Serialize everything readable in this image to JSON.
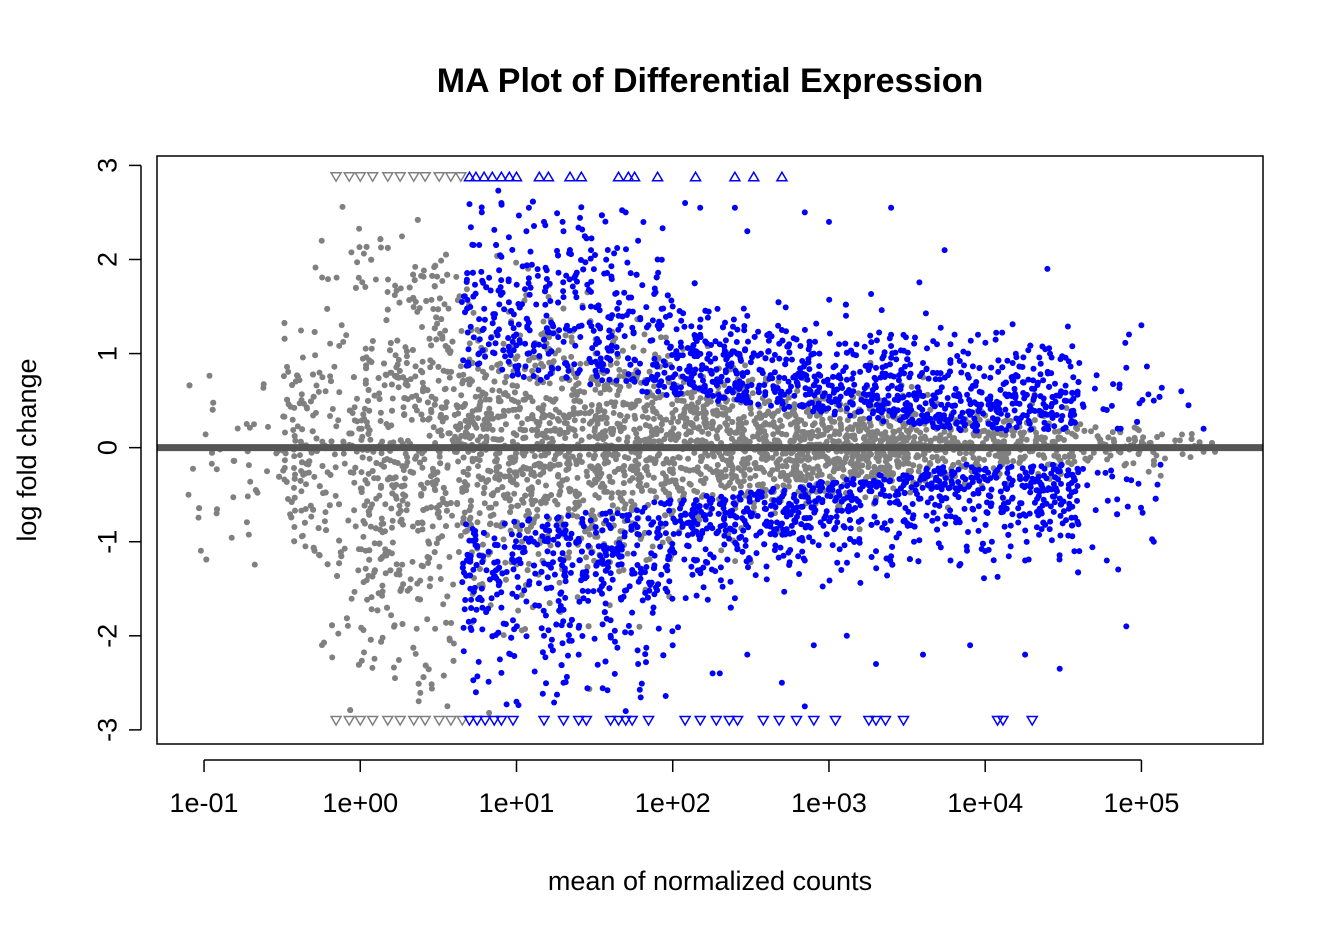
{
  "chart_data": {
    "type": "scatter",
    "title": "MA Plot of Differential Expression",
    "xlabel": "mean of normalized counts",
    "ylabel": "log fold change",
    "x_scale": "log10",
    "xlim": [
      0.05,
      600000
    ],
    "ylim": [
      -3.15,
      3.1
    ],
    "x_ticks": [
      {
        "value": 0.1,
        "label": "1e-01"
      },
      {
        "value": 1,
        "label": "1e+00"
      },
      {
        "value": 10,
        "label": "1e+01"
      },
      {
        "value": 100,
        "label": "1e+02"
      },
      {
        "value": 1000,
        "label": "1e+03"
      },
      {
        "value": 10000,
        "label": "1e+04"
      },
      {
        "value": 100000,
        "label": "1e+05"
      }
    ],
    "y_ticks": [
      {
        "value": 3,
        "label": "3"
      },
      {
        "value": 2,
        "label": "2"
      },
      {
        "value": 1,
        "label": "1"
      },
      {
        "value": 0,
        "label": "0"
      },
      {
        "value": -1,
        "label": "-1"
      },
      {
        "value": -2,
        "label": "-2"
      },
      {
        "value": -3,
        "label": "-3"
      }
    ],
    "reference_line": {
      "y": 0,
      "color": "#555555"
    },
    "colors": {
      "not_significant": "#808080",
      "significant": "#0000ff"
    },
    "series": [
      {
        "color": "#0000ff",
        "points": [
          [
            6.0,
            2.5
          ],
          [
            8.0,
            2.6
          ],
          [
            12.0,
            2.55
          ],
          [
            15.0,
            2.4
          ],
          [
            20.0,
            2.3
          ],
          [
            30.0,
            2.1
          ],
          [
            50.0,
            2.5
          ],
          [
            60.0,
            2.2
          ],
          [
            80.0,
            2.0
          ],
          [
            120.0,
            2.6
          ],
          [
            150.0,
            2.55
          ],
          [
            250.0,
            2.55
          ],
          [
            300.0,
            2.3
          ],
          [
            700.0,
            2.5
          ],
          [
            1000.0,
            2.4
          ],
          [
            2500.0,
            2.55
          ],
          [
            5500.0,
            2.1
          ],
          [
            25000.0,
            1.9
          ],
          [
            12.0,
            1.8
          ],
          [
            20.0,
            1.6
          ],
          [
            30.0,
            1.5
          ],
          [
            45.0,
            1.4
          ],
          [
            70.0,
            1.3
          ],
          [
            100.0,
            1.5
          ],
          [
            150.0,
            1.2
          ],
          [
            200.0,
            1.1
          ],
          [
            300.0,
            1.4
          ],
          [
            500.0,
            1.25
          ],
          [
            800.0,
            1.0
          ],
          [
            1500.0,
            1.1
          ],
          [
            2500.0,
            1.2
          ],
          [
            4000.0,
            0.9
          ],
          [
            6000.0,
            1.1
          ],
          [
            9000.0,
            1.2
          ],
          [
            15000.0,
            0.9
          ],
          [
            26000.0,
            1.0
          ],
          [
            40000.0,
            0.9
          ],
          [
            80000.0,
            0.85
          ],
          [
            100000.0,
            1.3
          ],
          [
            180000.0,
            0.6
          ],
          [
            35.0,
            0.9
          ],
          [
            60.0,
            0.8
          ],
          [
            100.0,
            0.75
          ],
          [
            180.0,
            0.7
          ],
          [
            300.0,
            0.65
          ],
          [
            600.0,
            0.55
          ],
          [
            1000.0,
            0.5
          ],
          [
            1800.0,
            0.45
          ],
          [
            3000.0,
            0.4
          ],
          [
            5000.0,
            0.35
          ],
          [
            8000.0,
            0.35
          ],
          [
            12000.0,
            0.3
          ],
          [
            20000.0,
            0.4
          ],
          [
            30000.0,
            0.55
          ],
          [
            60000.0,
            0.4
          ],
          [
            120000.0,
            0.5
          ],
          [
            200000.0,
            0.45
          ],
          [
            250000.0,
            0.2
          ],
          [
            40.0,
            -0.85
          ],
          [
            70.0,
            -0.75
          ],
          [
            120.0,
            -0.7
          ],
          [
            200.0,
            -0.6
          ],
          [
            350.0,
            -0.55
          ],
          [
            600.0,
            -0.5
          ],
          [
            1000.0,
            -0.45
          ],
          [
            1800.0,
            -0.4
          ],
          [
            3000.0,
            -0.4
          ],
          [
            5000.0,
            -0.35
          ],
          [
            9000.0,
            -0.3
          ],
          [
            15000.0,
            -0.35
          ],
          [
            25000.0,
            -0.45
          ],
          [
            45000.0,
            -0.4
          ],
          [
            70000.0,
            -0.55
          ],
          [
            12.0,
            -1.0
          ],
          [
            20.0,
            -1.2
          ],
          [
            35.0,
            -1.4
          ],
          [
            55.0,
            -1.3
          ],
          [
            90.0,
            -1.5
          ],
          [
            150.0,
            -1.3
          ],
          [
            250.0,
            -1.6
          ],
          [
            400.0,
            -1.4
          ],
          [
            700.0,
            -1.2
          ],
          [
            1200.0,
            -1.3
          ],
          [
            2000.0,
            -1.1
          ],
          [
            3500.0,
            -1.0
          ],
          [
            6000.0,
            -1.2
          ],
          [
            10000.0,
            -1.1
          ],
          [
            18000.0,
            -1.2
          ],
          [
            40000.0,
            -1.1
          ],
          [
            60000.0,
            -1.2
          ],
          [
            120000.0,
            -1.0
          ],
          [
            8.0,
            -1.7
          ],
          [
            15.0,
            -2.0
          ],
          [
            25.0,
            -2.2
          ],
          [
            40.0,
            -2.0
          ],
          [
            60.0,
            -2.3
          ],
          [
            100.0,
            -2.1
          ],
          [
            180.0,
            -2.4
          ],
          [
            300.0,
            -2.2
          ],
          [
            500.0,
            -2.5
          ],
          [
            800.0,
            -2.1
          ],
          [
            1300.0,
            -2.0
          ],
          [
            2000.0,
            -2.3
          ],
          [
            4000.0,
            -2.2
          ],
          [
            8000.0,
            -2.1
          ],
          [
            18000.0,
            -2.2
          ],
          [
            30000.0,
            -2.35
          ],
          [
            80000.0,
            -1.9
          ],
          [
            5.5,
            -2.6
          ],
          [
            10.0,
            -2.7
          ],
          [
            20.0,
            -2.5
          ],
          [
            50.0,
            -2.8
          ],
          [
            200.0,
            -2.4
          ],
          [
            700.0,
            -2.75
          ]
        ]
      }
    ],
    "clipped_upper_y": 2.88,
    "clipped_lower_y": -2.9,
    "clipped_points": {
      "not_significant": {
        "upper_x": [
          0.7,
          0.85,
          1.0,
          1.2,
          1.5,
          1.8,
          2.2,
          2.6,
          3.2,
          3.8,
          4.4
        ],
        "lower_x": [
          0.7,
          0.85,
          1.0,
          1.2,
          1.5,
          1.8,
          2.2,
          2.6,
          3.2,
          3.8,
          4.5
        ]
      },
      "significant": {
        "upper_x": [
          5.0,
          5.5,
          6.2,
          7.0,
          8.0,
          9.0,
          10.0,
          14.0,
          16.0,
          22.0,
          26.0,
          45.0,
          52.0,
          57.0,
          80.0,
          140.0,
          250.0,
          330.0,
          500.0
        ],
        "lower_x": [
          5.0,
          5.6,
          6.3,
          7.2,
          8.0,
          9.5,
          15.0,
          20.0,
          25.0,
          28.0,
          40.0,
          45.0,
          50.0,
          55.0,
          70.0,
          120.0,
          150.0,
          190.0,
          230.0,
          260.0,
          380.0,
          480.0,
          620.0,
          800.0,
          1100.0,
          1800.0,
          2000.0,
          2300.0,
          3000.0,
          12000.0,
          13000.0,
          20000.0
        ]
      }
    }
  }
}
